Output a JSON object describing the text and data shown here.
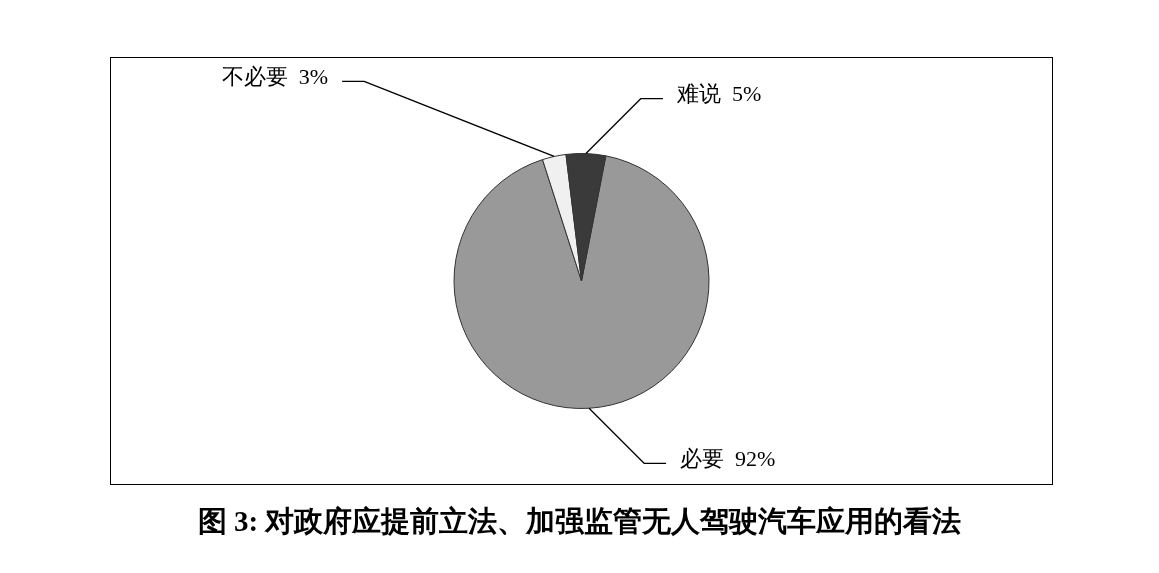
{
  "chart_data": {
    "type": "pie",
    "title": "图 3: 对政府应提前立法、加强监管无人驾驶汽车应用的看法",
    "categories": [
      "必要",
      "不必要",
      "难说"
    ],
    "values": [
      92,
      3,
      5
    ],
    "colors": [
      "#999999",
      "#f0f0f0",
      "#3a3a3a"
    ],
    "value_labels": [
      "92%",
      "3%",
      "5%"
    ],
    "legend": false
  }
}
